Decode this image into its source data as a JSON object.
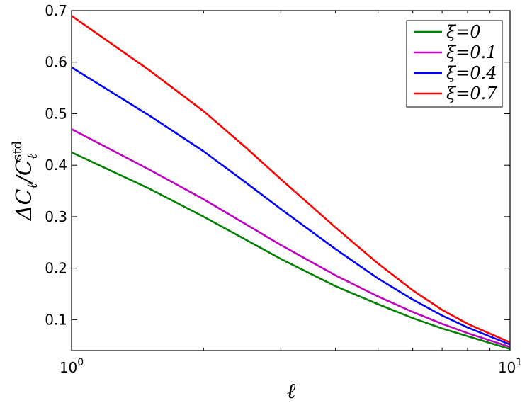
{
  "chart_data": {
    "type": "line",
    "xscale": "log",
    "xlim": [
      1,
      10
    ],
    "ylim": [
      0.04,
      0.7
    ],
    "xlabel": "ℓ",
    "ylabel": "ΔCℓ/Cℓstd",
    "ylabel_parts": {
      "main": "ΔC",
      "sub1": "ℓ",
      "slash": "/C",
      "sub2": "ℓ",
      "sup": "std"
    },
    "xticks": [
      {
        "value": 1,
        "base": "10",
        "exp": "0"
      },
      {
        "value": 10,
        "base": "10",
        "exp": "1"
      }
    ],
    "yticks": [
      0.1,
      0.2,
      0.3,
      0.4,
      0.5,
      0.6,
      0.7
    ],
    "ytick_labels": [
      "0.1",
      "0.2",
      "0.3",
      "0.4",
      "0.5",
      "0.6",
      "0.7"
    ],
    "legend_position": "top-right",
    "grid": false,
    "x": [
      1,
      1.5,
      2,
      2.5,
      3,
      4,
      5,
      6,
      7,
      8,
      10
    ],
    "series": [
      {
        "name": "ξ=0",
        "color": "#008000",
        "values": [
          0.425,
          0.355,
          0.3,
          0.255,
          0.218,
          0.165,
          0.13,
          0.103,
          0.083,
          0.068,
          0.043
        ]
      },
      {
        "name": "ξ=0.1",
        "color": "#bf00bf",
        "values": [
          0.47,
          0.392,
          0.334,
          0.285,
          0.245,
          0.186,
          0.145,
          0.115,
          0.092,
          0.074,
          0.047
        ]
      },
      {
        "name": "ξ=0.4",
        "color": "#0000ff",
        "values": [
          0.59,
          0.497,
          0.427,
          0.366,
          0.315,
          0.237,
          0.18,
          0.139,
          0.108,
          0.085,
          0.052
        ]
      },
      {
        "name": "ξ=0.7",
        "color": "#ff0000",
        "values": [
          0.69,
          0.585,
          0.505,
          0.434,
          0.373,
          0.279,
          0.209,
          0.157,
          0.119,
          0.092,
          0.056
        ]
      }
    ]
  }
}
